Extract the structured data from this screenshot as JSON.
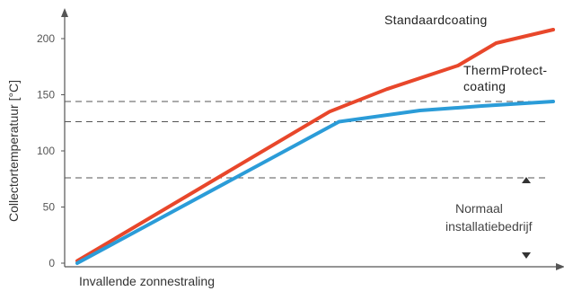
{
  "chart_data": {
    "type": "line",
    "title": "",
    "xlabel": "Invallende zonnestraling",
    "ylabel": "Collectortemperatuur [°C]",
    "ylim": [
      0,
      230
    ],
    "xlim": [
      0,
      100
    ],
    "yticks": [
      0,
      50,
      100,
      150,
      200
    ],
    "grid": false,
    "series": [
      {
        "name": "Standaardcoating",
        "label_lines": [
          "Standaardcoating"
        ],
        "color": "#e8472b",
        "x": [
          0,
          53,
          65,
          80,
          88,
          100
        ],
        "y": [
          2,
          135,
          155,
          176,
          196,
          208
        ]
      },
      {
        "name": "ThermProtect-coating",
        "label_lines": [
          "ThermProtect-",
          "coating"
        ],
        "color": "#2b9cd8",
        "x": [
          0,
          55,
          72,
          85,
          100
        ],
        "y": [
          0,
          126,
          136,
          140,
          144
        ]
      }
    ],
    "reference_lines": [
      144,
      126,
      76
    ],
    "annotation": {
      "lines": [
        "Normaal",
        "installatiebedrijf"
      ],
      "range": [
        0,
        76
      ]
    }
  },
  "colors": {
    "axis": "#555555",
    "dashed": "#555555",
    "arrow": "#333333"
  }
}
